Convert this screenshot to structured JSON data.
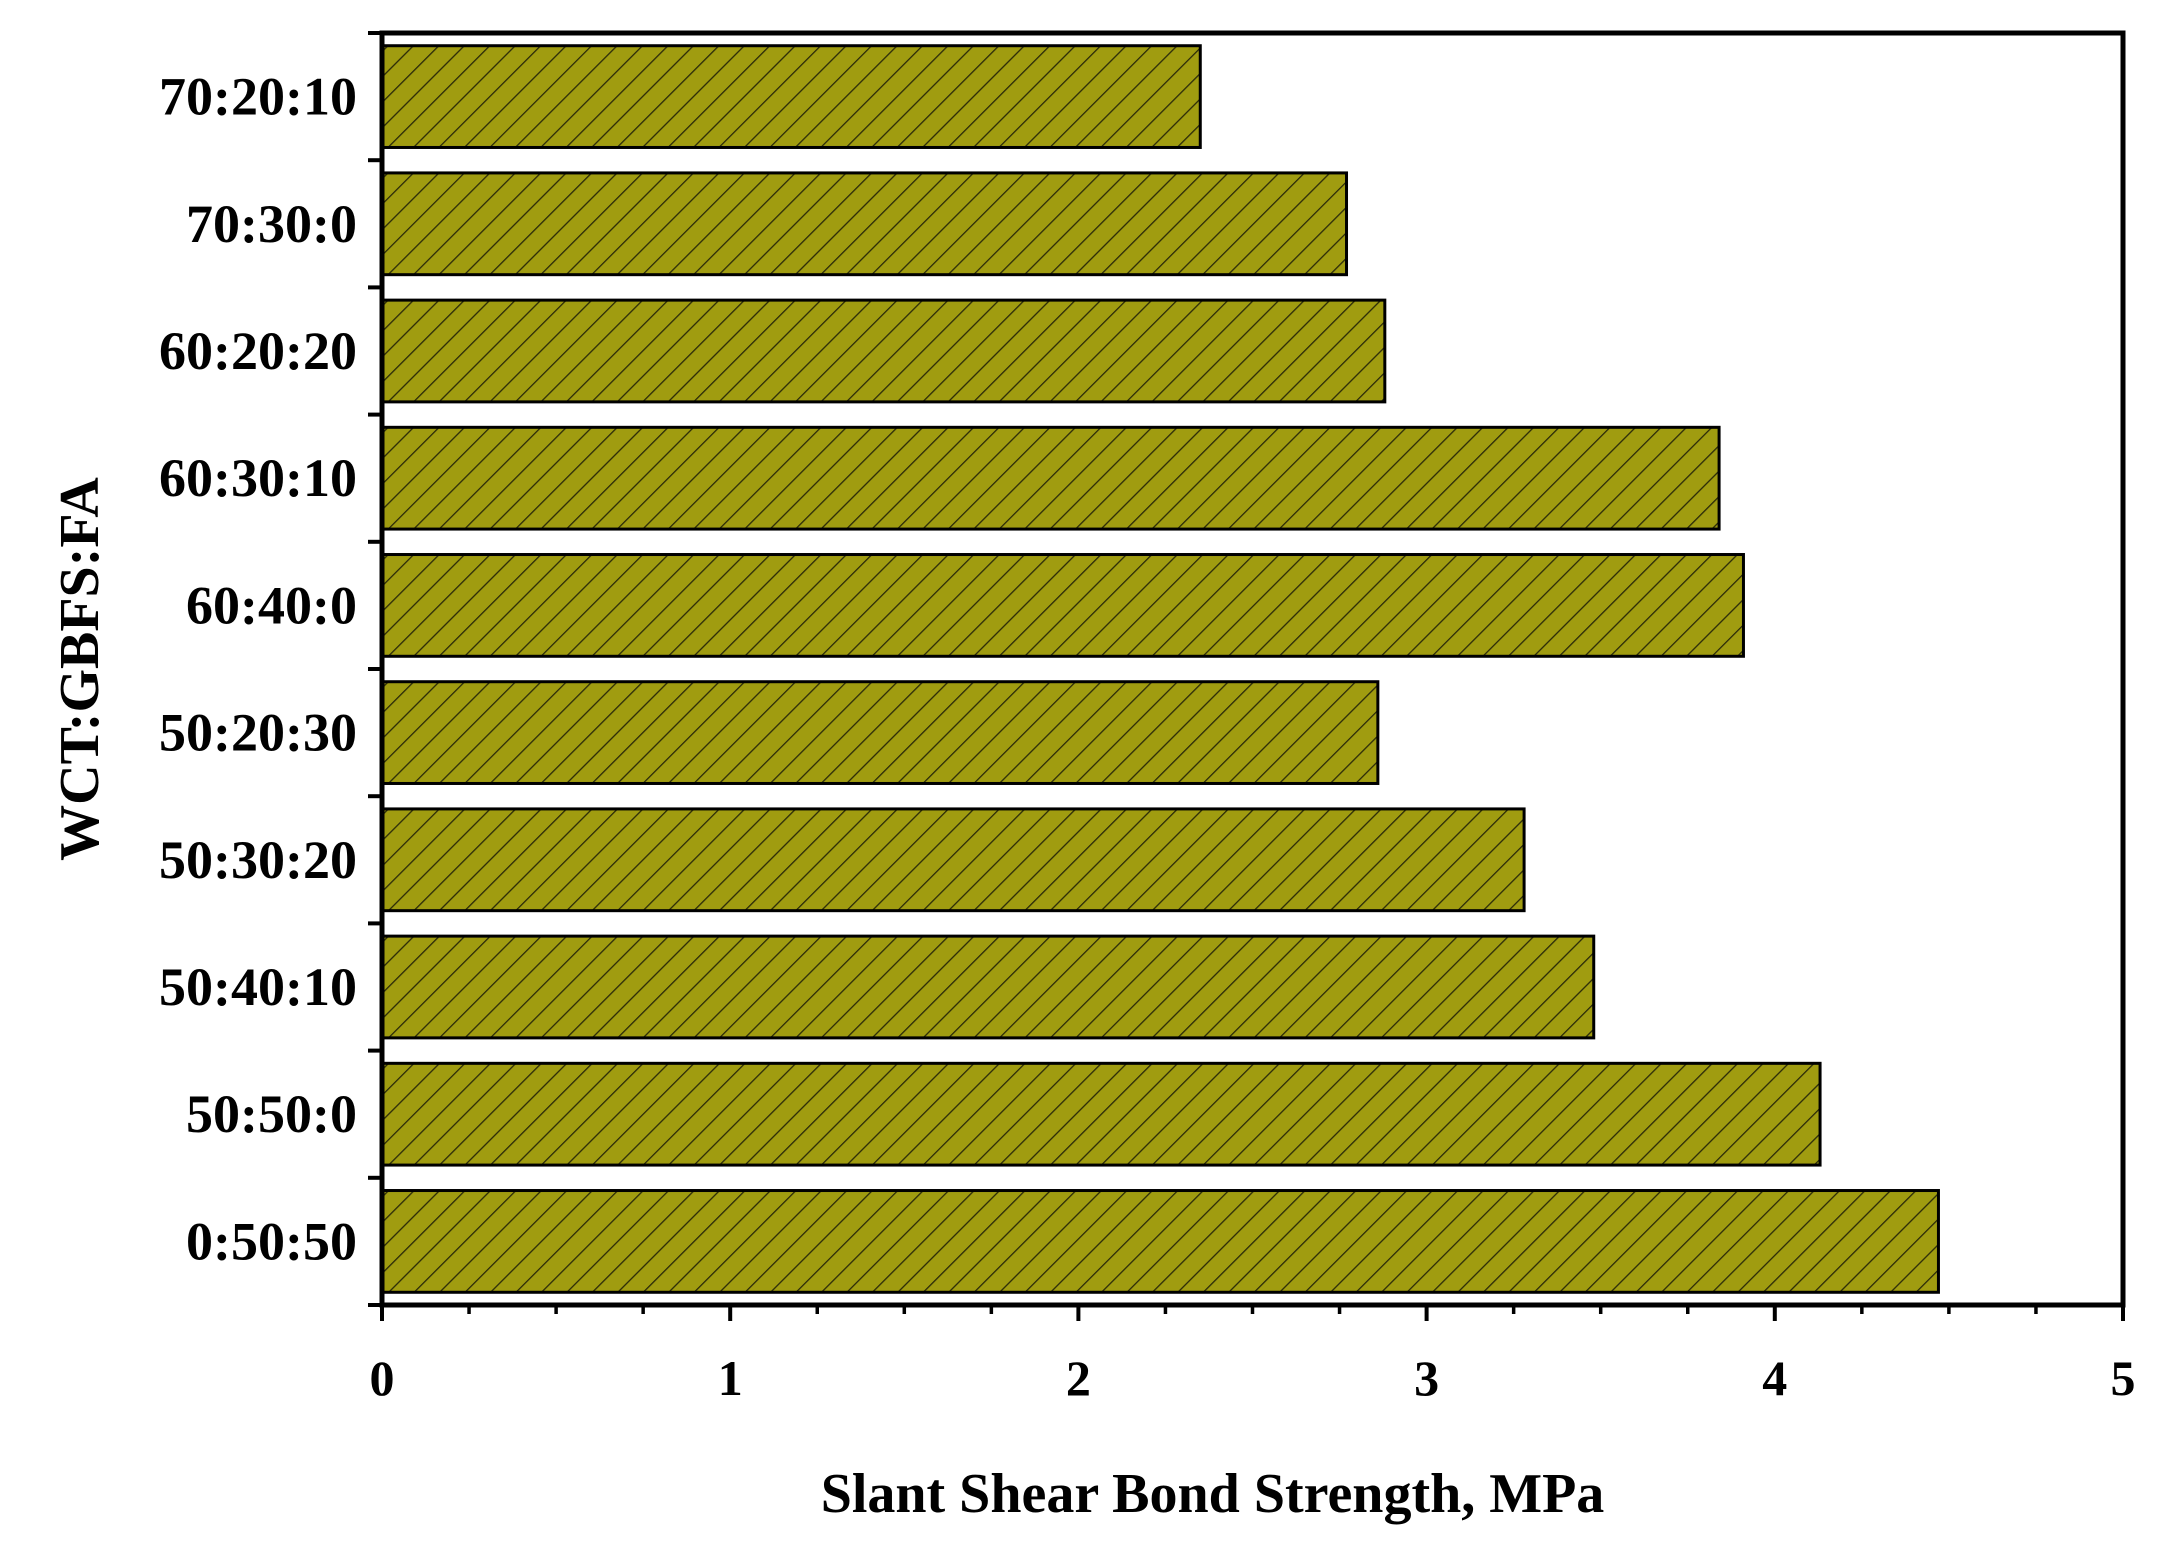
{
  "chart_data": {
    "type": "bar",
    "orientation": "horizontal",
    "title": "",
    "xlabel": "Slant Shear Bond Strength, MPa",
    "ylabel": "WCT:GBFS:FA",
    "categories": [
      "70:20:10",
      "70:30:0",
      "60:20:20",
      "60:30:10",
      "60:40:0",
      "50:20:30",
      "50:30:20",
      "50:40:10",
      "50:50:0",
      "0:50:50"
    ],
    "values": [
      2.35,
      2.77,
      2.88,
      3.84,
      3.91,
      2.86,
      3.28,
      3.48,
      4.13,
      4.47
    ],
    "xlim": [
      0,
      5
    ],
    "xticks": [
      "0",
      "1",
      "2",
      "3",
      "4",
      "5"
    ],
    "grid": false,
    "legend": "none",
    "bar_color": "#a09c10",
    "hatch_color": "#2a2a08"
  }
}
